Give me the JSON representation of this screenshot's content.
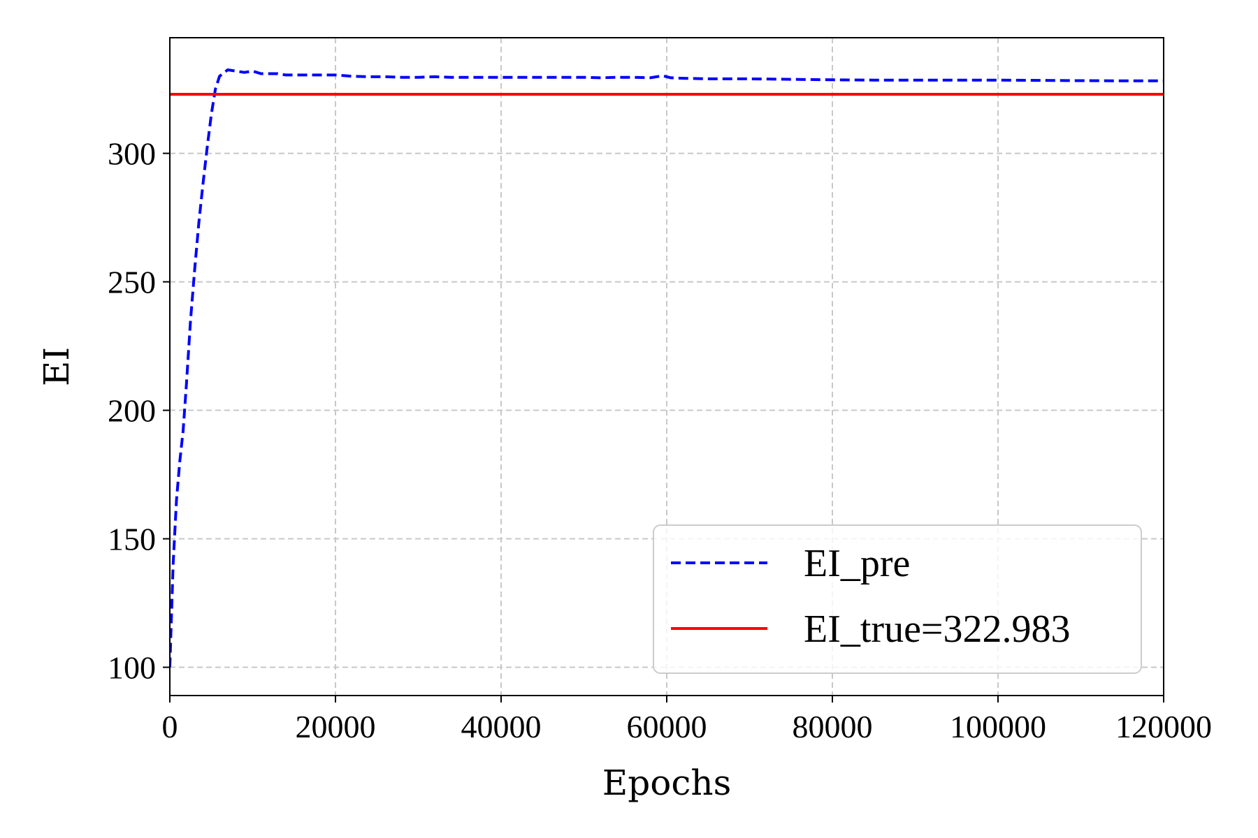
{
  "chart_data": {
    "type": "line",
    "xlabel": "Epochs",
    "ylabel": "EI",
    "xlim": [
      0,
      120000
    ],
    "ylim": [
      89,
      345
    ],
    "x_ticks": [
      0,
      20000,
      40000,
      60000,
      80000,
      100000,
      120000
    ],
    "y_ticks": [
      100,
      150,
      200,
      250,
      300
    ],
    "grid": true,
    "legend_position": "lower-right",
    "series": [
      {
        "name": "EI_pre",
        "color": "#0000ff",
        "style": "dashed",
        "x": [
          0,
          400,
          800,
          1200,
          1600,
          2000,
          2500,
          3000,
          3500,
          4000,
          4500,
          5000,
          5500,
          6000,
          7000,
          8000,
          9000,
          10000,
          11000,
          12000,
          13000,
          14000,
          15000,
          17000,
          20000,
          22000,
          24000,
          26000,
          28000,
          30000,
          32000,
          34000,
          36000,
          38000,
          40000,
          42000,
          45000,
          48000,
          50000,
          52000,
          54000,
          56000,
          58000,
          59500,
          60500,
          62000,
          65000,
          70000,
          75000,
          80000,
          85000,
          90000,
          95000,
          100000,
          105000,
          110000,
          115000,
          120000
        ],
        "y": [
          100,
          140,
          165,
          180,
          192,
          210,
          235,
          255,
          273,
          288,
          302,
          315,
          325,
          330,
          332.5,
          332,
          331.5,
          332,
          331,
          331,
          331,
          330.5,
          330.5,
          330.5,
          330.5,
          330,
          329.8,
          329.8,
          329.6,
          329.6,
          329.8,
          329.6,
          329.6,
          329.6,
          329.6,
          329.6,
          329.6,
          329.6,
          329.6,
          329.4,
          329.6,
          329.6,
          329.4,
          330.2,
          329.4,
          329.2,
          329,
          329,
          328.8,
          328.6,
          328.5,
          328.5,
          328.5,
          328.5,
          328.4,
          328.3,
          328.2,
          328.2
        ]
      },
      {
        "name": "EI_true=322.983",
        "color": "#ff0000",
        "style": "solid",
        "x": [
          0,
          120000
        ],
        "y": [
          322.983,
          322.983
        ]
      }
    ]
  }
}
